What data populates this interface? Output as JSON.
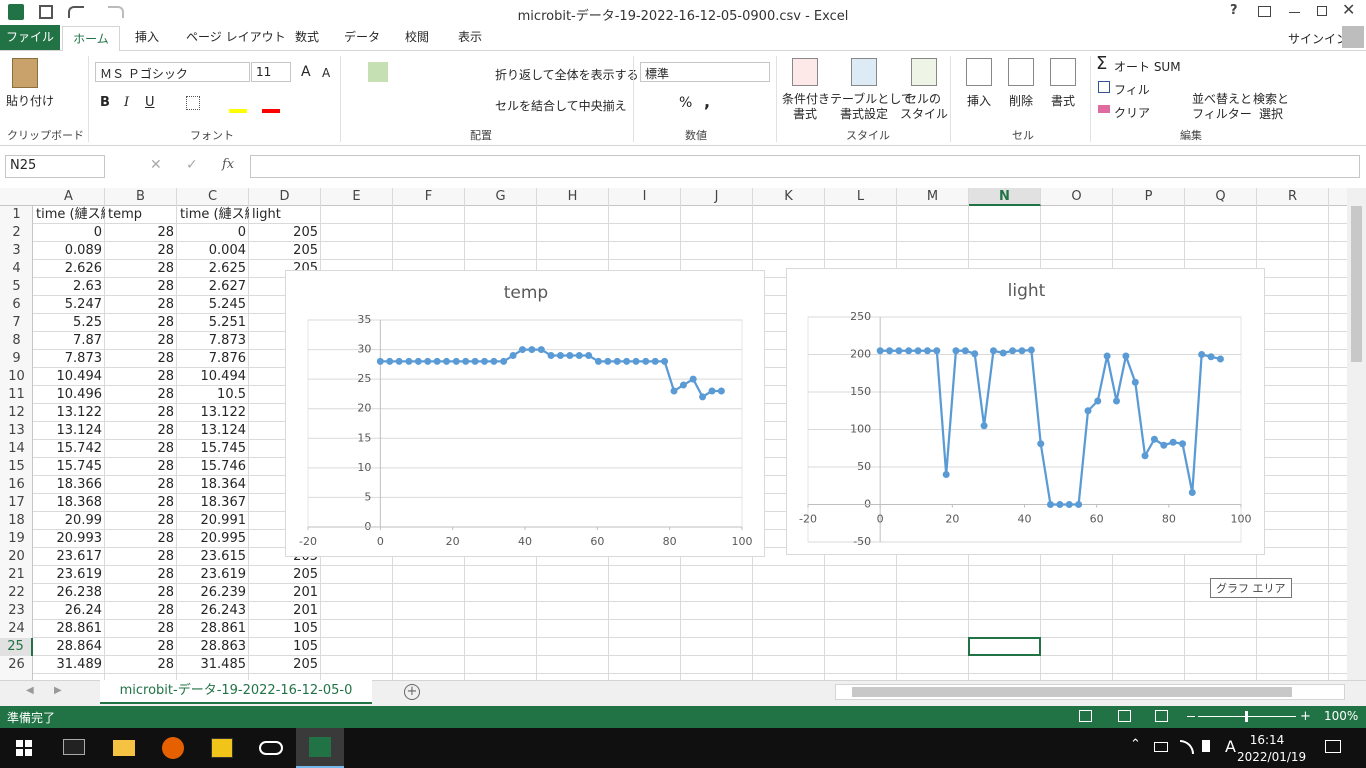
{
  "window": {
    "title": "microbit-データ-19-2022-16-12-05-0900.csv - Excel",
    "help": "?",
    "signin": "サインイン"
  },
  "tabs": [
    "ファイル",
    "ホーム",
    "挿入",
    "ページ レイアウト",
    "数式",
    "データ",
    "校閲",
    "表示"
  ],
  "ribbon": {
    "clipboard": {
      "paste": "貼り付け",
      "label": "クリップボード"
    },
    "font": {
      "name": "ＭＳ Ｐゴシック",
      "size": "11",
      "grow_shrink": [
        "A",
        "A"
      ],
      "styles": [
        "B",
        "I",
        "U"
      ],
      "label": "フォント"
    },
    "alignment": {
      "wrap": "折り返して全体を表示する",
      "merge": "セルを結合して中央揃え",
      "label": "配置"
    },
    "number": {
      "format": "標準",
      "symbols": [
        "%",
        ","
      ],
      "label": "数値"
    },
    "styles": {
      "conditional": [
        "条件付き",
        "書式"
      ],
      "table": [
        "テーブルとして",
        "書式設定"
      ],
      "cell": [
        "セルの",
        "スタイル"
      ],
      "label": "スタイル"
    },
    "cells": {
      "insert": "挿入",
      "delete": "削除",
      "format": "書式",
      "label": "セル"
    },
    "editing": {
      "autosum": "オート SUM",
      "fill": "フィル",
      "clear": "クリア",
      "sort": [
        "並べ替えと",
        "フィルター"
      ],
      "find": [
        "検索と",
        "選択"
      ],
      "label": "編集"
    }
  },
  "name_box": "N25",
  "fx": "fx",
  "columns": [
    "A",
    "B",
    "C",
    "D",
    "E",
    "F",
    "G",
    "H",
    "I",
    "J",
    "K",
    "L",
    "M",
    "N",
    "O",
    "P",
    "Q",
    "R"
  ],
  "rows": [
    {
      "n": "1",
      "cells": [
        "time (縺ス縺",
        "temp",
        "time (縺ス縺",
        "light"
      ]
    },
    {
      "n": "2",
      "cells": [
        "0",
        "28",
        "0",
        "205"
      ]
    },
    {
      "n": "3",
      "cells": [
        "0.089",
        "28",
        "0.004",
        "205"
      ]
    },
    {
      "n": "4",
      "cells": [
        "2.626",
        "28",
        "2.625",
        "205"
      ]
    },
    {
      "n": "5",
      "cells": [
        "2.63",
        "28",
        "2.627"
      ]
    },
    {
      "n": "6",
      "cells": [
        "5.247",
        "28",
        "5.245"
      ]
    },
    {
      "n": "7",
      "cells": [
        "5.25",
        "28",
        "5.251"
      ]
    },
    {
      "n": "8",
      "cells": [
        "7.87",
        "28",
        "7.873"
      ]
    },
    {
      "n": "9",
      "cells": [
        "7.873",
        "28",
        "7.876"
      ]
    },
    {
      "n": "10",
      "cells": [
        "10.494",
        "28",
        "10.494"
      ]
    },
    {
      "n": "11",
      "cells": [
        "10.496",
        "28",
        "10.5"
      ]
    },
    {
      "n": "12",
      "cells": [
        "13.122",
        "28",
        "13.122"
      ]
    },
    {
      "n": "13",
      "cells": [
        "13.124",
        "28",
        "13.124"
      ]
    },
    {
      "n": "14",
      "cells": [
        "15.742",
        "28",
        "15.745"
      ]
    },
    {
      "n": "15",
      "cells": [
        "15.745",
        "28",
        "15.746"
      ]
    },
    {
      "n": "16",
      "cells": [
        "18.366",
        "28",
        "18.364"
      ]
    },
    {
      "n": "17",
      "cells": [
        "18.368",
        "28",
        "18.367"
      ]
    },
    {
      "n": "18",
      "cells": [
        "20.99",
        "28",
        "20.991"
      ]
    },
    {
      "n": "19",
      "cells": [
        "20.993",
        "28",
        "20.995"
      ]
    },
    {
      "n": "20",
      "cells": [
        "23.617",
        "28",
        "23.615",
        "205"
      ]
    },
    {
      "n": "21",
      "cells": [
        "23.619",
        "28",
        "23.619",
        "205"
      ]
    },
    {
      "n": "22",
      "cells": [
        "26.238",
        "28",
        "26.239",
        "201"
      ]
    },
    {
      "n": "23",
      "cells": [
        "26.24",
        "28",
        "26.243",
        "201"
      ]
    },
    {
      "n": "24",
      "cells": [
        "28.861",
        "28",
        "28.861",
        "105"
      ]
    },
    {
      "n": "25",
      "cells": [
        "28.864",
        "28",
        "28.863",
        "105"
      ]
    },
    {
      "n": "26",
      "cells": [
        "31.489",
        "28",
        "31.485",
        "205"
      ]
    }
  ],
  "chart_data": [
    {
      "type": "scatter",
      "title": "temp",
      "xlim": [
        -20,
        100
      ],
      "xticks": [
        -20,
        0,
        20,
        40,
        60,
        80,
        100
      ],
      "ylim": [
        0,
        35
      ],
      "yticks": [
        0,
        5,
        10,
        15,
        20,
        25,
        30,
        35
      ],
      "grid": true,
      "series": [
        {
          "color": "#5b9bd5",
          "x": [
            0,
            2.6,
            5.2,
            7.9,
            10.5,
            13.1,
            15.7,
            18.3,
            21,
            23.6,
            26.2,
            28.8,
            31.4,
            34.1,
            36.7,
            39.3,
            41.9,
            44.5,
            47.2,
            49.8,
            52.4,
            55,
            57.6,
            60.3,
            62.9,
            65.5,
            68.1,
            70.7,
            73.4,
            76,
            78.6,
            81.2,
            83.8,
            86.5,
            89.1,
            91.7,
            94.3
          ],
          "values": [
            28,
            28,
            28,
            28,
            28,
            28,
            28,
            28,
            28,
            28,
            28,
            28,
            28,
            28,
            29,
            30,
            30,
            30,
            29,
            29,
            29,
            29,
            29,
            28,
            28,
            28,
            28,
            28,
            28,
            28,
            28,
            23,
            24,
            25,
            22,
            23,
            23
          ]
        }
      ]
    },
    {
      "type": "scatter",
      "title": "light",
      "xlim": [
        -20,
        100
      ],
      "xticks": [
        -20,
        0,
        20,
        40,
        60,
        80,
        100
      ],
      "ylim": [
        -50,
        250
      ],
      "yticks": [
        -50,
        0,
        50,
        100,
        150,
        200,
        250
      ],
      "grid": true,
      "series": [
        {
          "color": "#5b9bd5",
          "x": [
            0,
            2.6,
            5.2,
            7.9,
            10.5,
            13.1,
            15.7,
            18.3,
            21,
            23.6,
            26.2,
            28.8,
            31.4,
            34.1,
            36.7,
            39.3,
            41.9,
            44.5,
            47.2,
            49.8,
            52.4,
            55,
            57.6,
            60.3,
            62.9,
            65.5,
            68.1,
            70.7,
            73.4,
            76,
            78.6,
            81.2,
            83.8,
            86.5,
            89.1,
            91.7,
            94.3
          ],
          "values": [
            205,
            205,
            205,
            205,
            205,
            205,
            205,
            40,
            205,
            205,
            201,
            105,
            205,
            202,
            205,
            205,
            206,
            81,
            0,
            0,
            0,
            0,
            125,
            138,
            198,
            138,
            198,
            163,
            65,
            87,
            79,
            83,
            81,
            16,
            200,
            197,
            194
          ]
        }
      ]
    }
  ],
  "tooltip": "グラフ エリア",
  "sheet_tab": "microbit-データ-19-2022-16-12-05-0",
  "status": {
    "ready": "準備完了",
    "zoom": "100%"
  },
  "taskbar": {
    "ime": "A",
    "time": "16:14",
    "date": "2022/01/19"
  }
}
